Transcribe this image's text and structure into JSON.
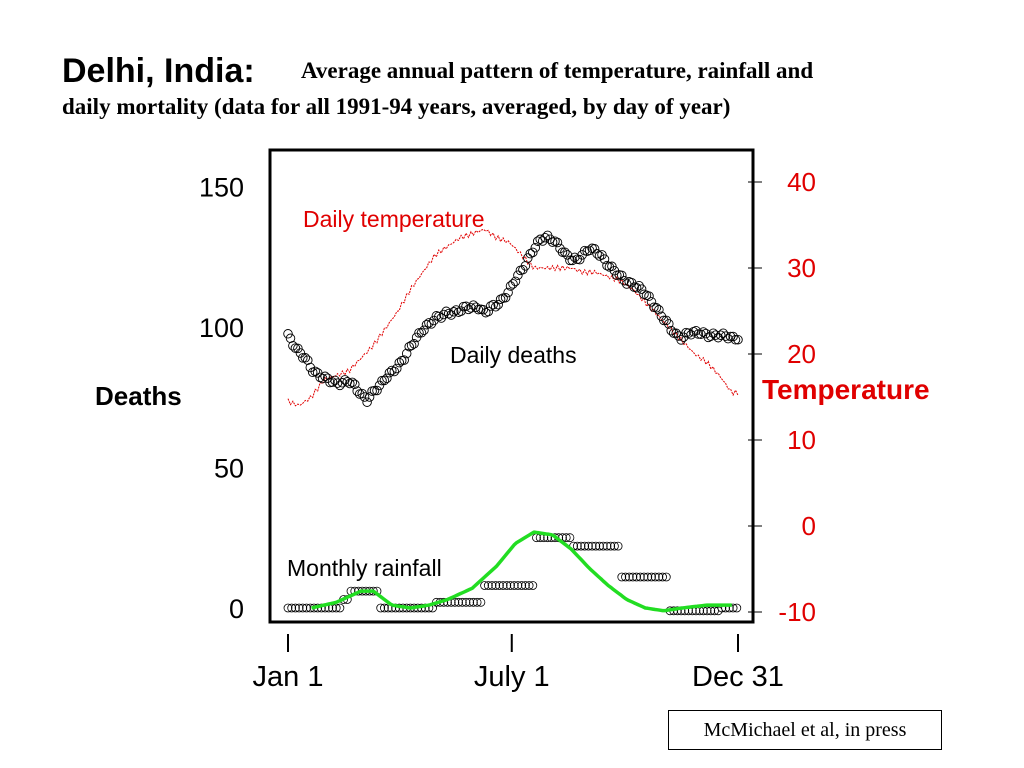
{
  "slide": {
    "title": "Delhi, India:",
    "subtitle_line1": "Average annual pattern of temperature, rainfall and",
    "subtitle_line2": "daily mortality (data for all 1991-94 years, averaged, by day of year)",
    "citation": "McMichael et al, in press"
  },
  "chart_data": {
    "type": "line",
    "colors": {
      "deaths": "#000000",
      "temperature": "#e00000",
      "rainfall_fit": "#22dd22",
      "rainfall_points": "#000000"
    },
    "grid": false,
    "x_axis": {
      "range": [
        1,
        365
      ],
      "ticks": [
        {
          "value": 1,
          "label": "Jan 1"
        },
        {
          "value": 182,
          "label": "July 1"
        },
        {
          "value": 365,
          "label": "Dec 31"
        }
      ]
    },
    "y_left": {
      "label": "Deaths",
      "range": [
        -5,
        163
      ],
      "ticks": [
        0,
        50,
        100,
        150
      ]
    },
    "y_right": {
      "label": "Temperature",
      "range": [
        -12,
        42
      ],
      "ticks": [
        -10,
        0,
        10,
        20,
        30,
        40
      ],
      "color": "#e00000"
    },
    "annotations": {
      "temperature": "Daily temperature",
      "deaths": "Daily deaths",
      "rainfall": "Monthly rainfall"
    },
    "series": [
      {
        "name": "Daily deaths",
        "axis": "left",
        "marker": "circle",
        "x": [
          1,
          5,
          10,
          15,
          20,
          25,
          30,
          35,
          40,
          45,
          50,
          55,
          60,
          65,
          70,
          75,
          80,
          85,
          90,
          95,
          100,
          105,
          110,
          115,
          120,
          125,
          130,
          135,
          140,
          145,
          150,
          155,
          160,
          165,
          170,
          175,
          180,
          185,
          190,
          195,
          200,
          205,
          210,
          215,
          220,
          225,
          230,
          235,
          240,
          245,
          250,
          255,
          260,
          265,
          270,
          275,
          280,
          285,
          290,
          295,
          300,
          305,
          310,
          315,
          320,
          325,
          330,
          335,
          340,
          345,
          350,
          355,
          360,
          365
        ],
        "y": [
          97,
          94,
          91,
          89,
          85,
          83,
          82,
          81,
          80,
          80,
          81,
          79,
          76,
          74,
          77,
          79,
          82,
          84,
          86,
          89,
          93,
          96,
          99,
          101,
          103,
          104,
          105,
          105,
          106,
          107,
          107,
          107,
          105,
          107,
          108,
          110,
          113,
          117,
          120,
          124,
          128,
          131,
          132,
          131,
          129,
          126,
          124,
          124,
          126,
          128,
          127,
          125,
          122,
          120,
          118,
          116,
          115,
          114,
          112,
          109,
          106,
          103,
          100,
          97,
          96,
          98,
          98,
          98,
          97,
          97,
          97,
          97,
          96,
          96
        ]
      },
      {
        "name": "Daily temperature",
        "axis": "right",
        "marker": "none",
        "x": [
          1,
          10,
          20,
          30,
          40,
          50,
          60,
          70,
          80,
          90,
          100,
          110,
          120,
          130,
          140,
          150,
          160,
          170,
          180,
          190,
          200,
          210,
          220,
          230,
          240,
          250,
          260,
          270,
          280,
          290,
          300,
          310,
          320,
          330,
          340,
          350,
          360,
          365
        ],
        "y": [
          14.5,
          14,
          15,
          17,
          17.5,
          18,
          19.5,
          21,
          23,
          25,
          27.5,
          29.5,
          31.5,
          32.5,
          33.5,
          34,
          34.5,
          33.5,
          33,
          31.5,
          30,
          30,
          30,
          30,
          29.5,
          29.5,
          29,
          28.5,
          27.5,
          26,
          24.5,
          23,
          21.5,
          20,
          19,
          17.5,
          15.5,
          15.5
        ]
      },
      {
        "name": "Monthly rainfall",
        "axis": "left",
        "marker": "circle",
        "x": [
          1,
          10,
          20,
          30,
          35,
          40,
          45,
          50,
          55,
          60,
          65,
          70,
          75,
          80,
          90,
          100,
          110,
          120,
          130,
          140,
          150,
          155,
          160,
          170,
          180,
          190,
          200,
          210,
          220,
          230,
          240,
          250,
          260,
          270,
          280,
          290,
          300,
          310,
          320,
          330,
          340,
          350,
          360,
          365
        ],
        "y": [
          0,
          0,
          0,
          0,
          0,
          0,
          3,
          6,
          6,
          6,
          6,
          6,
          0,
          0,
          0,
          0,
          0,
          2,
          2,
          2,
          2,
          2,
          8,
          8,
          8,
          8,
          25,
          25,
          25,
          22,
          22,
          22,
          22,
          11,
          11,
          11,
          11,
          -1,
          -1,
          -1,
          -1,
          0,
          0,
          0
        ]
      },
      {
        "name": "Monthly rainfall (smoothed)",
        "axis": "left",
        "marker": "none",
        "x": [
          20,
          40,
          60,
          70,
          85,
          100,
          115,
          130,
          150,
          170,
          185,
          200,
          215,
          230,
          245,
          260,
          275,
          290,
          305,
          320,
          340,
          360
        ],
        "y": [
          0,
          2,
          6,
          6,
          1,
          0,
          1,
          3,
          7,
          15,
          23,
          27,
          26,
          21,
          14,
          8,
          3,
          0,
          -1,
          0,
          1,
          1
        ]
      }
    ]
  }
}
